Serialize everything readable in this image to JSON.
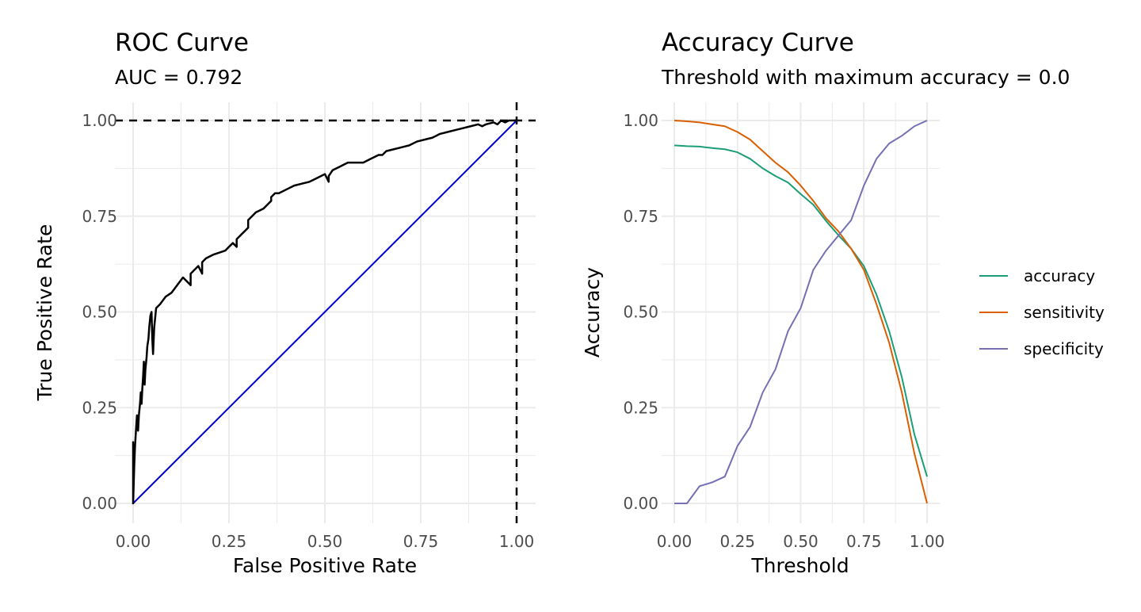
{
  "colors": {
    "roc_line": "#000000",
    "diagonal": "#0000cd",
    "accuracy": "#1b9e77",
    "sensitivity": "#d95f02",
    "specificity": "#7570b3",
    "grid": "#ebebeb",
    "tick_text": "#4d4d4d"
  },
  "chart_data": [
    {
      "type": "line",
      "title": "ROC Curve",
      "subtitle": "AUC = 0.792",
      "xlabel": "False Positive Rate",
      "ylabel": "True Positive Rate",
      "xlim": [
        0,
        1
      ],
      "ylim": [
        0,
        1
      ],
      "x_ticks": [
        "0.00",
        "0.25",
        "0.50",
        "0.75",
        "1.00"
      ],
      "y_ticks": [
        "0.00",
        "0.25",
        "0.50",
        "0.75",
        "1.00"
      ],
      "grid": true,
      "reference_lines": {
        "horizontal_dashed_y": 1.0,
        "vertical_dashed_x": 1.0,
        "diagonal": true
      },
      "series": [
        {
          "x": [
            0.0,
            0.0,
            0.0,
            0.003,
            0.005,
            0.008,
            0.01,
            0.013,
            0.015,
            0.018,
            0.02,
            0.022,
            0.024,
            0.026,
            0.028,
            0.03,
            0.032,
            0.035,
            0.037,
            0.04,
            0.042,
            0.045,
            0.048,
            0.05,
            0.052,
            0.055,
            0.058,
            0.06,
            0.06,
            0.065,
            0.07,
            0.085,
            0.1,
            0.13,
            0.15,
            0.15,
            0.17,
            0.18,
            0.18,
            0.19,
            0.21,
            0.24,
            0.25,
            0.26,
            0.27,
            0.27,
            0.28,
            0.29,
            0.3,
            0.3,
            0.31,
            0.32,
            0.34,
            0.36,
            0.36,
            0.37,
            0.38,
            0.4,
            0.42,
            0.44,
            0.46,
            0.48,
            0.5,
            0.51,
            0.51,
            0.52,
            0.53,
            0.54,
            0.55,
            0.56,
            0.58,
            0.6,
            0.62,
            0.64,
            0.65,
            0.66,
            0.68,
            0.7,
            0.72,
            0.74,
            0.76,
            0.78,
            0.79,
            0.8,
            0.82,
            0.84,
            0.86,
            0.88,
            0.9,
            0.91,
            0.92,
            0.94,
            0.95,
            0.96,
            0.97,
            0.98,
            1.0
          ],
          "y": [
            0.0,
            0.16,
            0.0,
            0.1,
            0.15,
            0.2,
            0.23,
            0.19,
            0.23,
            0.26,
            0.29,
            0.26,
            0.3,
            0.33,
            0.37,
            0.31,
            0.35,
            0.38,
            0.41,
            0.43,
            0.46,
            0.49,
            0.5,
            0.43,
            0.39,
            0.46,
            0.49,
            0.51,
            0.51,
            0.515,
            0.52,
            0.54,
            0.55,
            0.59,
            0.57,
            0.6,
            0.62,
            0.6,
            0.63,
            0.64,
            0.65,
            0.66,
            0.67,
            0.68,
            0.67,
            0.69,
            0.7,
            0.71,
            0.72,
            0.74,
            0.75,
            0.76,
            0.77,
            0.79,
            0.8,
            0.81,
            0.81,
            0.82,
            0.83,
            0.835,
            0.84,
            0.85,
            0.86,
            0.84,
            0.855,
            0.87,
            0.875,
            0.88,
            0.885,
            0.89,
            0.89,
            0.89,
            0.9,
            0.91,
            0.91,
            0.92,
            0.925,
            0.93,
            0.935,
            0.945,
            0.95,
            0.955,
            0.96,
            0.965,
            0.97,
            0.975,
            0.98,
            0.985,
            0.99,
            0.985,
            0.99,
            0.995,
            0.99,
            1.0,
            0.995,
            1.0,
            1.0
          ]
        },
        {
          "x": [
            0.0,
            1.0
          ],
          "y": [
            0.0,
            1.0
          ]
        }
      ]
    },
    {
      "type": "line",
      "title": "Accuracy Curve",
      "subtitle": "Threshold with maximum accuracy = 0.0",
      "xlabel": "Threshold",
      "ylabel": "Accuracy",
      "xlim": [
        0,
        1
      ],
      "ylim": [
        0,
        1
      ],
      "x_ticks": [
        "0.00",
        "0.25",
        "0.50",
        "0.75",
        "1.00"
      ],
      "y_ticks": [
        "0.00",
        "0.25",
        "0.50",
        "0.75",
        "1.00"
      ],
      "grid": true,
      "legend": {
        "position": "right",
        "entries": [
          "accuracy",
          "sensitivity",
          "specificity"
        ]
      },
      "x": [
        0.0,
        0.05,
        0.1,
        0.15,
        0.2,
        0.25,
        0.3,
        0.35,
        0.4,
        0.45,
        0.5,
        0.55,
        0.6,
        0.65,
        0.7,
        0.75,
        0.8,
        0.85,
        0.9,
        0.95,
        1.0
      ],
      "series": [
        {
          "name": "accuracy",
          "values": [
            0.935,
            0.933,
            0.932,
            0.928,
            0.925,
            0.917,
            0.9,
            0.875,
            0.855,
            0.838,
            0.808,
            0.78,
            0.738,
            0.7,
            0.665,
            0.62,
            0.545,
            0.45,
            0.33,
            0.18,
            0.07
          ]
        },
        {
          "name": "sensitivity",
          "values": [
            1.0,
            0.998,
            0.995,
            0.99,
            0.985,
            0.97,
            0.95,
            0.92,
            0.89,
            0.865,
            0.83,
            0.79,
            0.745,
            0.71,
            0.665,
            0.61,
            0.52,
            0.42,
            0.29,
            0.13,
            0.0
          ]
        },
        {
          "name": "specificity",
          "values": [
            0.0,
            0.0,
            0.045,
            0.055,
            0.07,
            0.15,
            0.2,
            0.29,
            0.35,
            0.45,
            0.51,
            0.61,
            0.66,
            0.7,
            0.74,
            0.83,
            0.9,
            0.94,
            0.96,
            0.985,
            1.0
          ]
        }
      ]
    }
  ]
}
